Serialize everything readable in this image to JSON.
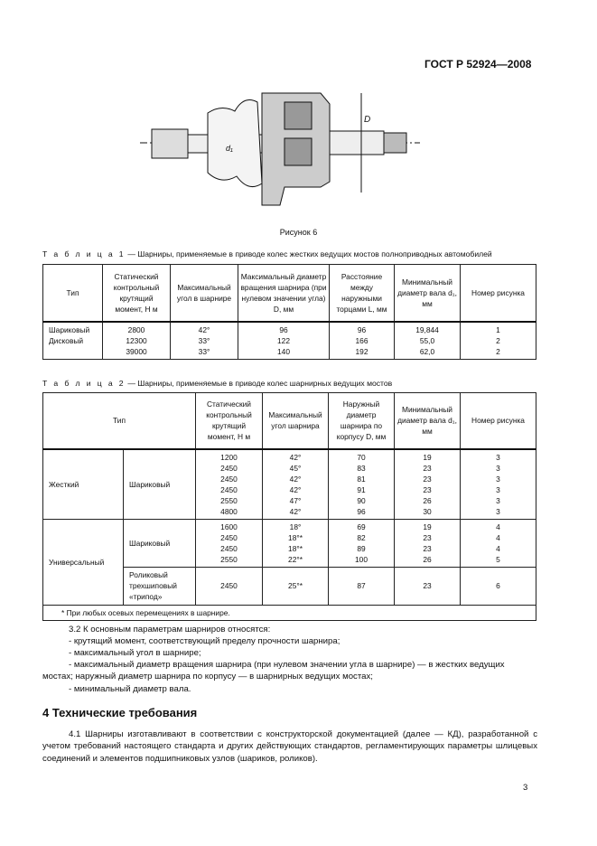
{
  "header": {
    "doc_id": "ГОСТ Р 52924—2008"
  },
  "figure": {
    "caption": "Рисунок 6",
    "labels": {
      "d1": "d₁",
      "D": "D"
    }
  },
  "table1": {
    "caption_prefix": "Т а б л и ц а  1",
    "caption_text": " — Шарниры, применяемые в приводе колес жестких ведущих мостов полноприводных автомобилей",
    "headers": [
      "Тип",
      "Статический контрольный крутящий момент, Н   м",
      "Максимальный угол в шарнире",
      "Максимальный диаметр вращения шарнира (при нулевом значении угла) D, мм",
      "Расстояние между наружными торцами L, мм",
      "Минимальный диаметр вала d₁, мм",
      "Номер рисунка"
    ],
    "type_col": "Шариковый\nДисковый",
    "torque": "2800\n12300\n39000",
    "angle": "42°\n33°\n33°",
    "diameter": "96\n122\n140",
    "distance": "96\n166\n192",
    "shaft": "19,844\n55,0\n62,0",
    "figure": "1\n2\n2"
  },
  "table2": {
    "caption_prefix": "Т а б л и ц а  2",
    "caption_text": " — Шарниры, применяемые в приводе колес шарнирных ведущих мостов",
    "headers": [
      "Тип",
      "Статический контрольный крутящий момент, Н   м",
      "Максимальный угол шарнира",
      "Наружный диаметр шарнира по корпусу D, мм",
      "Минимальный диаметр вала d₁, мм",
      "Номер рисунка"
    ],
    "groups": [
      {
        "type": "Жесткий",
        "sub": "Шариковый",
        "torque": "1200\n2450\n2450\n2450\n2550\n4800",
        "angle": "42°\n45°\n42°\n42°\n47°\n42°",
        "diameter": "70\n83\n81\n91\n90\n96",
        "shaft": "19\n23\n23\n23\n26\n30",
        "figure": "3\n3\n3\n3\n3\n3"
      },
      {
        "type": "Универсальный",
        "sub": "Шариковый",
        "torque": "1600\n2450\n2450\n2550",
        "angle": "18°\n18°*\n18°*\n22°*",
        "diameter": "69\n82\n89\n100",
        "shaft": "19\n23\n23\n26",
        "figure": "4\n4\n4\n5"
      },
      {
        "sub": "Роликовый трехшиповый «трипод»",
        "torque": "2450",
        "angle": "25°*",
        "diameter": "87",
        "shaft": "23",
        "figure": "6"
      }
    ],
    "footnote": "* При любых осевых перемещениях в шарнире."
  },
  "section32": {
    "lines": [
      "3.2  К основным параметрам шарниров относятся:",
      "- крутящий момент, соответствующий пределу прочности шарнира;",
      "- максимальный угол в шарнире;",
      "- максимальный диаметр вращения шарнира (при нулевом значении угла в шарнире) — в жестких ведущих мостах; наружный диаметр шарнира по корпусу — в шарнирных ведущих мостах;",
      "- минимальный диаметр вала."
    ]
  },
  "section4": {
    "title": "4  Технические требования",
    "para": "4.1  Шарниры изготавливают в соответствии с конструкторской документацией (далее — КД), разработанной с учетом требований настоящего стандарта и других действующих стандартов, регламентирующих параметры шлицевых соединений и элементов подшипниковых узлов (шариков, роликов)."
  },
  "page_number": "3"
}
